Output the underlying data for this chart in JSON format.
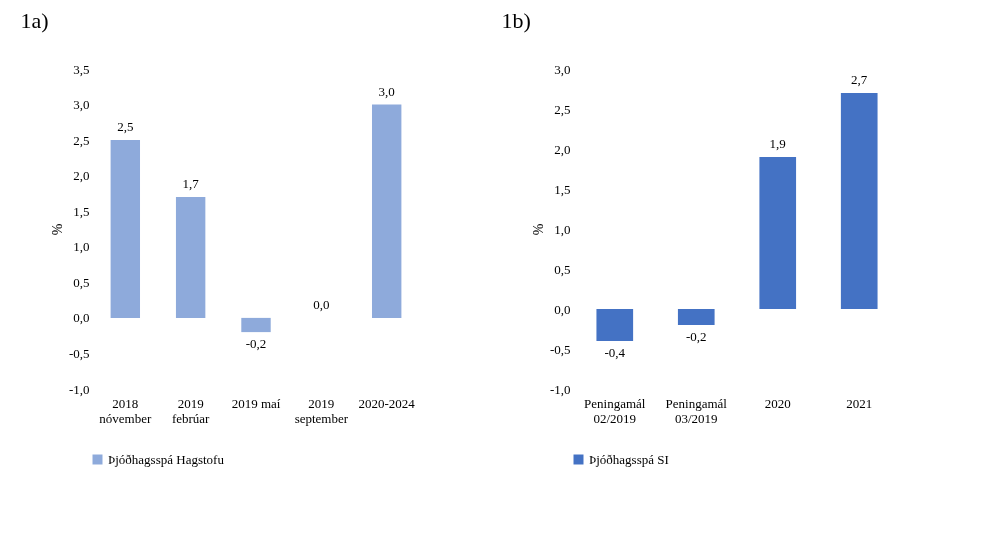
{
  "chart_data": [
    {
      "type": "bar",
      "title": "1a)",
      "ylabel": "%",
      "categories": [
        "2018\nnóvember",
        "2019\nfebrúar",
        "2019 maí",
        "2019\nseptember",
        "2020-2024"
      ],
      "series": [
        {
          "name": "Þjóðhagsspá Hagstofu",
          "color": "#8eaadb",
          "values": [
            2.5,
            1.7,
            -0.2,
            0.0,
            3.0
          ],
          "value_labels": [
            "2,5",
            "1,7",
            "-0,2",
            "0,0",
            "3,0"
          ]
        }
      ],
      "ylim": [
        -1,
        3.5
      ],
      "yticks": [
        {
          "value": -1,
          "label": "-1,0"
        },
        {
          "value": -0.5,
          "label": "-0,5"
        },
        {
          "value": 0,
          "label": "0,0"
        },
        {
          "value": 0.5,
          "label": "0,5"
        },
        {
          "value": 1,
          "label": "1,0"
        },
        {
          "value": 1.5,
          "label": "1,5"
        },
        {
          "value": 2,
          "label": "2,0"
        },
        {
          "value": 2.5,
          "label": "2,5"
        },
        {
          "value": 3,
          "label": "3,0"
        },
        {
          "value": 3.5,
          "label": "3,5"
        }
      ],
      "legend": "bottom"
    },
    {
      "type": "bar",
      "title": "1b)",
      "ylabel": "%",
      "categories": [
        "Peningamál\n02/2019",
        "Peningamál\n03/2019",
        "2020",
        "2021"
      ],
      "series": [
        {
          "name": "Þjóðhagsspá SI",
          "color": "#4472c4",
          "values": [
            -0.4,
            -0.2,
            1.9,
            2.7
          ],
          "value_labels": [
            "-0,4",
            "-0,2",
            "1,9",
            "2,7"
          ]
        }
      ],
      "ylim": [
        -1,
        3
      ],
      "yticks": [
        {
          "value": -1,
          "label": "-1,0"
        },
        {
          "value": -0.5,
          "label": "-0,5"
        },
        {
          "value": 0,
          "label": "0,0"
        },
        {
          "value": 0.5,
          "label": "0,5"
        },
        {
          "value": 1,
          "label": "1,0"
        },
        {
          "value": 1.5,
          "label": "1,5"
        },
        {
          "value": 2,
          "label": "2,0"
        },
        {
          "value": 2.5,
          "label": "2,5"
        },
        {
          "value": 3,
          "label": "3,0"
        }
      ],
      "legend": "bottom"
    }
  ]
}
